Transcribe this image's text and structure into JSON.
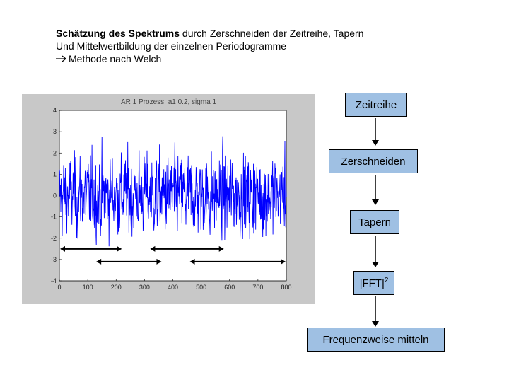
{
  "heading": {
    "line1_bold": "Schätzung des Spektrums",
    "line1_rest": " durch Zerschneiden der Zeitreihe, Tapern",
    "line2": "Und Mittelwertbildung der einzelnen Periodogramme",
    "line3": "Methode nach Welch"
  },
  "plot": {
    "title": "AR 1 Prozess, a1 0.2, sigma 1",
    "x_ticks": [
      "0",
      "100",
      "200",
      "300",
      "400",
      "500",
      "600",
      "700",
      "800"
    ],
    "y_ticks": [
      "4",
      "3",
      "2",
      "1",
      "0",
      "-1",
      "-2",
      "-3",
      "-4"
    ],
    "line_color": "#0000ff"
  },
  "chart_data": {
    "type": "line",
    "title": "AR 1 Prozess, a1 0.2, sigma 1",
    "xlim": [
      0,
      800
    ],
    "ylim": [
      -4,
      4
    ],
    "segments": [
      {
        "start": 0,
        "end": 220
      },
      {
        "start": 130,
        "end": 360
      },
      {
        "start": 320,
        "end": 580
      },
      {
        "start": 460,
        "end": 800
      }
    ]
  },
  "flow": {
    "steps": [
      "Zeitreihe",
      "Zerschneiden",
      "Tapern",
      "|FFT|",
      "Frequenzweise mitteln"
    ],
    "fft_superscript": "2",
    "box_color": "#9fc0e3"
  }
}
